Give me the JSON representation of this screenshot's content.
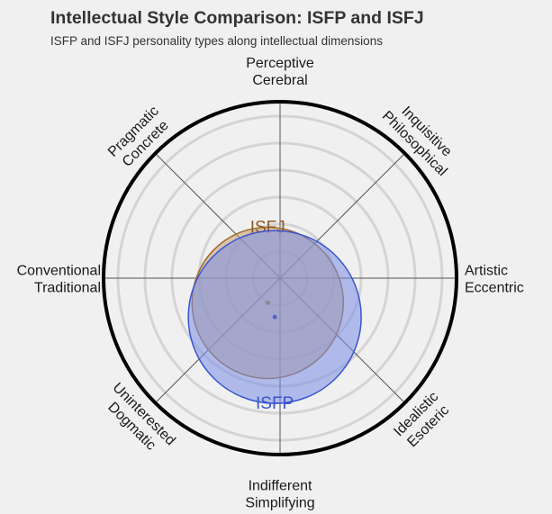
{
  "header": {
    "title": "Intellectual Style Comparison: ISFP and ISFJ",
    "subtitle": "ISFP and ISFJ personality types along intellectual dimensions"
  },
  "colors": {
    "background": "#f0f0f0",
    "grid": "#d4d4d4",
    "spokes": "#555555",
    "outer_ring": "#000000",
    "isfj_fill": "#c6a072",
    "isfj_stroke": "#a06a2c",
    "isfj_label": "#8f5a26",
    "isfp_fill": "#7a8ee6",
    "isfp_stroke": "#3a55d0",
    "isfp_label": "#3a55cc"
  },
  "chart_data": {
    "type": "radial-bubble",
    "title": "Intellectual Style Comparison: ISFP and ISFJ",
    "subtitle": "ISFP and ISFJ personality types along intellectual dimensions",
    "grid_rings": 6,
    "r_max": 100,
    "axes": [
      {
        "id": "top",
        "angle_deg": 90,
        "lines": [
          "Perceptive",
          "Cerebral"
        ]
      },
      {
        "id": "top-right",
        "angle_deg": 45,
        "lines": [
          "Inquisitive",
          "Philosophical"
        ]
      },
      {
        "id": "right",
        "angle_deg": 0,
        "lines": [
          "Artistic",
          "Eccentric"
        ]
      },
      {
        "id": "bottom-right",
        "angle_deg": -45,
        "lines": [
          "Idealistic",
          "Esoteric"
        ]
      },
      {
        "id": "bottom",
        "angle_deg": -90,
        "lines": [
          "Indifferent",
          "Simplifying"
        ]
      },
      {
        "id": "bottom-left",
        "angle_deg": -135,
        "lines": [
          "Uninterested",
          "Dogmatic"
        ]
      },
      {
        "id": "left",
        "angle_deg": 180,
        "lines": [
          "Conventional",
          "Traditional"
        ]
      },
      {
        "id": "top-left",
        "angle_deg": 135,
        "lines": [
          "Pragmatic",
          "Concrete"
        ]
      }
    ],
    "series": [
      {
        "name": "ISFJ",
        "x": -7,
        "y": -14,
        "size": 21
      },
      {
        "name": "ISFP",
        "x": -3,
        "y": -22,
        "size": 24
      }
    ]
  }
}
